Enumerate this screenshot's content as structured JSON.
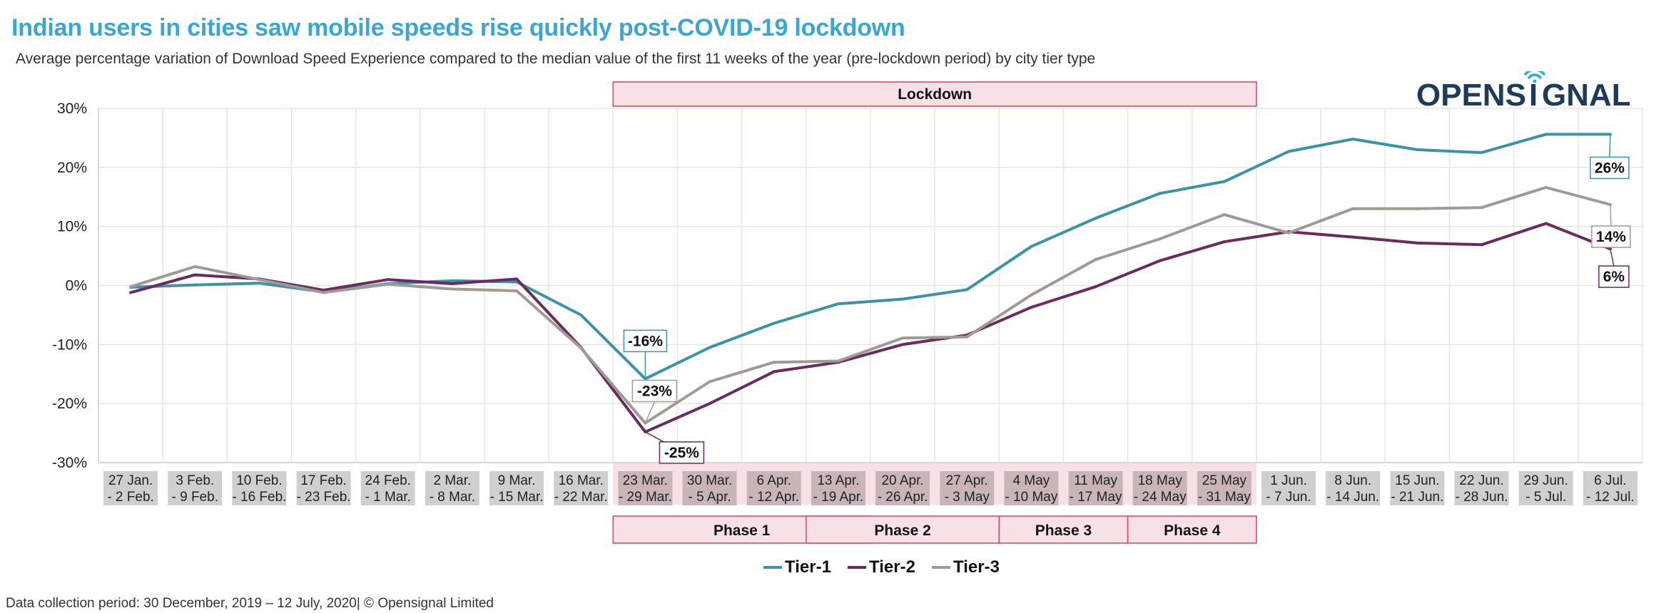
{
  "header": {
    "title": "Indian users in cities saw mobile speeds rise quickly post-COVID-19 lockdown",
    "subtitle": "Average percentage variation of Download Speed Experience compared to the median value of the first 11 weeks of the year (pre-lockdown period) by city tier type"
  },
  "logo": {
    "text_left": "OPENS",
    "text_i": "I",
    "text_right": "GNAL",
    "color": "#1f3b5c",
    "accent": "#3aa6d6"
  },
  "footer": {
    "text": "Data collection period: 30 December, 2019 – 12 July, 2020| © Opensignal Limited"
  },
  "chart_data": {
    "type": "line",
    "categories": [
      [
        "27 Jan.",
        "- 2 Feb."
      ],
      [
        "3 Feb.",
        "- 9 Feb."
      ],
      [
        "10 Feb.",
        "- 16 Feb."
      ],
      [
        "17 Feb.",
        "- 23 Feb."
      ],
      [
        "24 Feb.",
        "- 1 Mar."
      ],
      [
        "2 Mar.",
        "- 8 Mar."
      ],
      [
        "9 Mar.",
        "- 15 Mar."
      ],
      [
        "16 Mar.",
        "- 22 Mar."
      ],
      [
        "23 Mar.",
        "- 29 Mar."
      ],
      [
        "30 Mar.",
        "- 5 Apr."
      ],
      [
        "6 Apr.",
        "- 12 Apr."
      ],
      [
        "13 Apr.",
        "- 19 Apr."
      ],
      [
        "20 Apr.",
        "- 26 Apr."
      ],
      [
        "27 Apr.",
        "- 3 May"
      ],
      [
        "4 May",
        "- 10 May"
      ],
      [
        "11 May",
        "- 17 May"
      ],
      [
        "18 May",
        "- 24 May"
      ],
      [
        "25 May",
        "- 31 May"
      ],
      [
        "1 Jun.",
        "- 7 Jun."
      ],
      [
        "8 Jun.",
        "- 14 Jun."
      ],
      [
        "15 Jun.",
        "- 21 Jun."
      ],
      [
        "22 Jun.",
        "- 28 Jun."
      ],
      [
        "29 Jun.",
        "- 5 Jul."
      ],
      [
        "6 Jul.",
        "- 12 Jul."
      ]
    ],
    "series": [
      {
        "name": "Tier-1",
        "color": "#3b93a6",
        "values": [
          -0.3,
          0.1,
          0.4,
          -1.1,
          0.3,
          0.8,
          0.6,
          -5,
          -15.8,
          -10.5,
          -6.4,
          -3.1,
          -2.3,
          -0.7,
          6.6,
          11.4,
          15.6,
          17.6,
          22.7,
          24.8,
          23,
          22.5,
          25.6,
          25.6
        ]
      },
      {
        "name": "Tier-2",
        "color": "#6b2b5e",
        "values": [
          -1.2,
          1.8,
          1.1,
          -0.8,
          1,
          0.3,
          1.1,
          -10.5,
          -24.8,
          -20,
          -14.6,
          -13,
          -10,
          -8.4,
          -3.7,
          -0.2,
          4.2,
          7.4,
          9.1,
          8.2,
          7.2,
          6.9,
          10.5,
          6.2
        ]
      },
      {
        "name": "Tier-3",
        "color": "#a09a94",
        "values": [
          -0.2,
          3.2,
          1,
          -1.2,
          0.2,
          -0.6,
          -0.9,
          -10.6,
          -23.3,
          -16.3,
          -13,
          -12.8,
          -8.9,
          -8.7,
          -1.6,
          4.4,
          7.9,
          12,
          8.9,
          13,
          13,
          13.2,
          16.6,
          13.7
        ]
      }
    ],
    "ylim": [
      -30,
      30
    ],
    "yticks": [
      30,
      20,
      10,
      0,
      -10,
      -20,
      -30
    ],
    "ytick_labels": [
      "30%",
      "20%",
      "10%",
      "0%",
      "-10%",
      "-20%",
      "-30%"
    ],
    "xlabel": "",
    "ylabel": "",
    "grid": true,
    "legend": "bottom",
    "lockdown_band": {
      "label": "Lockdown",
      "start_index": 8,
      "end_index": 17,
      "fill": "#f8e1e6",
      "border": "#d9435a"
    },
    "phases": [
      {
        "label": "Phase 1",
        "start_index": 8,
        "end_index": 11
      },
      {
        "label": "Phase 2",
        "start_index": 11,
        "end_index": 13
      },
      {
        "label": "Phase 3",
        "start_index": 14,
        "end_index": 15
      },
      {
        "label": "Phase 4",
        "start_index": 16,
        "end_index": 17
      }
    ],
    "callouts": [
      {
        "series": 0,
        "index": 8,
        "text": "-16%"
      },
      {
        "series": 2,
        "index": 8,
        "text": "-23%"
      },
      {
        "series": 1,
        "index": 8,
        "text": "-25%"
      },
      {
        "series": 0,
        "index": 23,
        "text": "26%"
      },
      {
        "series": 2,
        "index": 23,
        "text": "14%"
      },
      {
        "series": 1,
        "index": 23,
        "text": "6%"
      }
    ]
  }
}
